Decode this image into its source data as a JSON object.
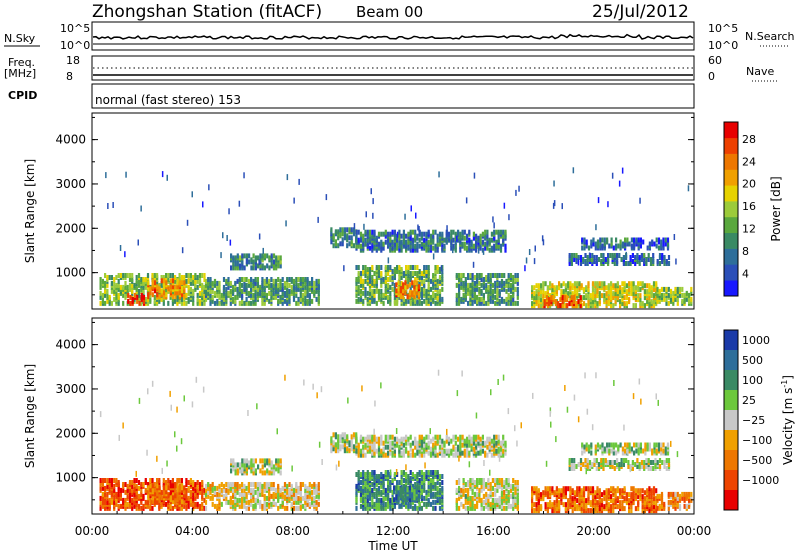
{
  "header": {
    "station": "Zhongshan Station (fitACF)",
    "beam": "Beam 00",
    "date": "25/Jul/2012"
  },
  "top_panels": {
    "nsky_label": "N.Sky",
    "nsky_ticks": [
      "10^5",
      "10^0"
    ],
    "nsearch_label": "N.Search",
    "nsearch_ticks": [
      "10^5",
      "10^0"
    ],
    "freq_label": "Freq.",
    "freq_unit": "[MHz]",
    "freq_ticks": [
      "18",
      "8"
    ],
    "nave_label": "Nave",
    "nave_ticks": [
      "60",
      "0"
    ],
    "cpid_label": "CPID",
    "cpid_value": "normal (fast stereo) 153"
  },
  "chart_data": [
    {
      "type": "heatmap",
      "name": "power",
      "ylabel": "Slant Range [km]",
      "ylim": [
        180,
        4600
      ],
      "yticks": [
        "1000",
        "2000",
        "3000",
        "4000"
      ],
      "xlim": [
        0,
        24
      ],
      "colorbar": {
        "label": "Power [dB]",
        "ticks": [
          "4",
          "8",
          "12",
          "16",
          "20",
          "24",
          "28"
        ],
        "colors": [
          "#1818ff",
          "#2b4fb8",
          "#2e6e9a",
          "#3a8a64",
          "#5aa83e",
          "#9ccb3a",
          "#e6d200",
          "#f0a000",
          "#ee7700",
          "#ee4000",
          "#e80000"
        ]
      },
      "regions": [
        {
          "t": [
            0.3,
            4.5
          ],
          "r": [
            250,
            900
          ],
          "v": 0.45
        },
        {
          "t": [
            1.4,
            2.1
          ],
          "r": [
            250,
            450
          ],
          "v": 0.95
        },
        {
          "t": [
            2.2,
            3.7
          ],
          "r": [
            400,
            800
          ],
          "v": 0.75
        },
        {
          "t": [
            4.5,
            9.0
          ],
          "r": [
            250,
            800
          ],
          "v": 0.35
        },
        {
          "t": [
            5.5,
            7.5
          ],
          "r": [
            1050,
            1350
          ],
          "v": 0.3
        },
        {
          "t": [
            9.5,
            10.5
          ],
          "r": [
            1550,
            1950
          ],
          "v": 0.3
        },
        {
          "t": [
            10.5,
            16.5
          ],
          "r": [
            1450,
            1900
          ],
          "v": 0.25
        },
        {
          "t": [
            10.5,
            14.0
          ],
          "r": [
            250,
            1100
          ],
          "v": 0.4
        },
        {
          "t": [
            12.0,
            13.0
          ],
          "r": [
            400,
            750
          ],
          "v": 0.75
        },
        {
          "t": [
            14.5,
            17.0
          ],
          "r": [
            250,
            900
          ],
          "v": 0.35
        },
        {
          "t": [
            17.5,
            22.5
          ],
          "r": [
            200,
            700
          ],
          "v": 0.55
        },
        {
          "t": [
            18.0,
            19.5
          ],
          "r": [
            200,
            400
          ],
          "v": 0.85
        },
        {
          "t": [
            19.0,
            23.0
          ],
          "r": [
            1150,
            1350
          ],
          "v": 0.2
        },
        {
          "t": [
            19.5,
            23.0
          ],
          "r": [
            1500,
            1700
          ],
          "v": 0.2
        },
        {
          "t": [
            22.5,
            23.9
          ],
          "r": [
            250,
            600
          ],
          "v": 0.45
        }
      ]
    },
    {
      "type": "heatmap",
      "name": "velocity",
      "ylabel": "Slant Range [km]",
      "ylim": [
        180,
        4600
      ],
      "yticks": [
        "1000",
        "2000",
        "3000",
        "4000"
      ],
      "xlabel": "Time UT",
      "xlim": [
        0,
        24
      ],
      "xticks": [
        "00:00",
        "04:00",
        "08:00",
        "12:00",
        "16:00",
        "20:00",
        "00:00"
      ],
      "colorbar": {
        "label": "Velocity [m s",
        "label_sup": "-1",
        "label_end": "]",
        "ticks": [
          "1000",
          "500",
          "100",
          "25",
          "−25",
          "−100",
          "−500",
          "−1000"
        ],
        "colors": [
          "#1a3aa8",
          "#2e6e9a",
          "#3a8a64",
          "#6cc83c",
          "#c8c8c8",
          "#f0a000",
          "#ee7700",
          "#ee4400",
          "#e80000"
        ]
      },
      "regions": [
        {
          "t": [
            0.3,
            4.5
          ],
          "r": [
            250,
            900
          ],
          "v": 0.8
        },
        {
          "t": [
            2.2,
            3.7
          ],
          "r": [
            400,
            800
          ],
          "v": 0.75
        },
        {
          "t": [
            4.5,
            9.0
          ],
          "r": [
            250,
            800
          ],
          "v": 0.55
        },
        {
          "t": [
            5.5,
            7.5
          ],
          "r": [
            1050,
            1350
          ],
          "v": 0.45
        },
        {
          "t": [
            9.5,
            10.5
          ],
          "r": [
            1550,
            1950
          ],
          "v": 0.45
        },
        {
          "t": [
            10.5,
            16.5
          ],
          "r": [
            1450,
            1900
          ],
          "v": 0.45
        },
        {
          "t": [
            10.5,
            14.0
          ],
          "r": [
            250,
            1100
          ],
          "v": 0.25
        },
        {
          "t": [
            12.0,
            13.0
          ],
          "r": [
            400,
            750
          ],
          "v": 0.2
        },
        {
          "t": [
            14.5,
            17.0
          ],
          "r": [
            250,
            900
          ],
          "v": 0.5
        },
        {
          "t": [
            17.5,
            22.5
          ],
          "r": [
            200,
            700
          ],
          "v": 0.75
        },
        {
          "t": [
            19.0,
            23.0
          ],
          "r": [
            1150,
            1350
          ],
          "v": 0.45
        },
        {
          "t": [
            19.5,
            23.0
          ],
          "r": [
            1500,
            1700
          ],
          "v": 0.45
        },
        {
          "t": [
            22.5,
            23.9
          ],
          "r": [
            250,
            600
          ],
          "v": 0.7
        }
      ]
    }
  ]
}
